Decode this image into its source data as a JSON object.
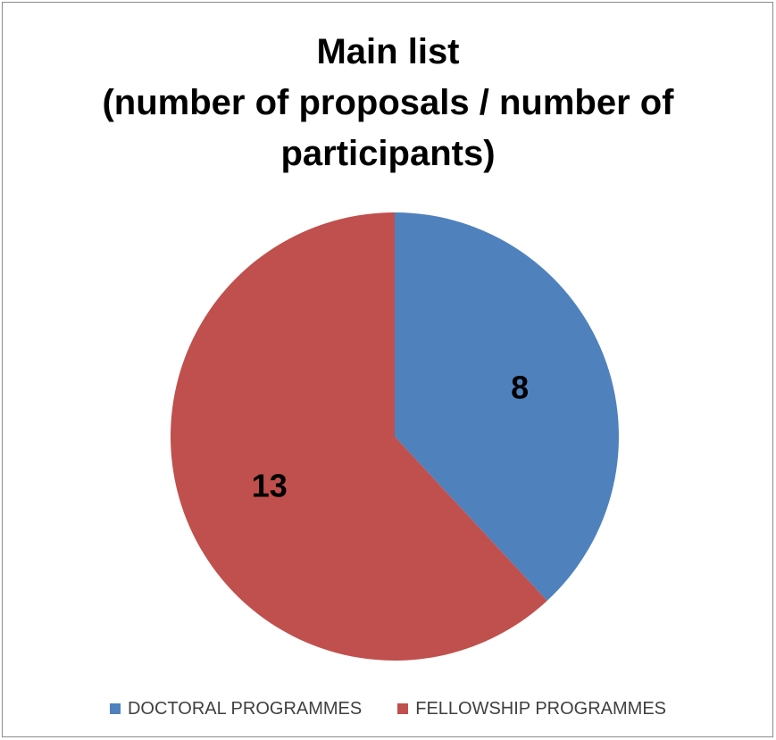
{
  "chart_data": {
    "type": "pie",
    "title_lines": [
      "Main list",
      "(number of proposals / number of",
      "participants)"
    ],
    "categories": [
      "DOCTORAL PROGRAMMES",
      "FELLOWSHIP PROGRAMMES"
    ],
    "values": [
      8,
      13
    ],
    "data_labels": [
      "8",
      "13"
    ],
    "colors": [
      "#4f81bd",
      "#c0504d"
    ],
    "start_angle_deg": 0,
    "direction": "clockwise",
    "legend_position": "bottom"
  }
}
